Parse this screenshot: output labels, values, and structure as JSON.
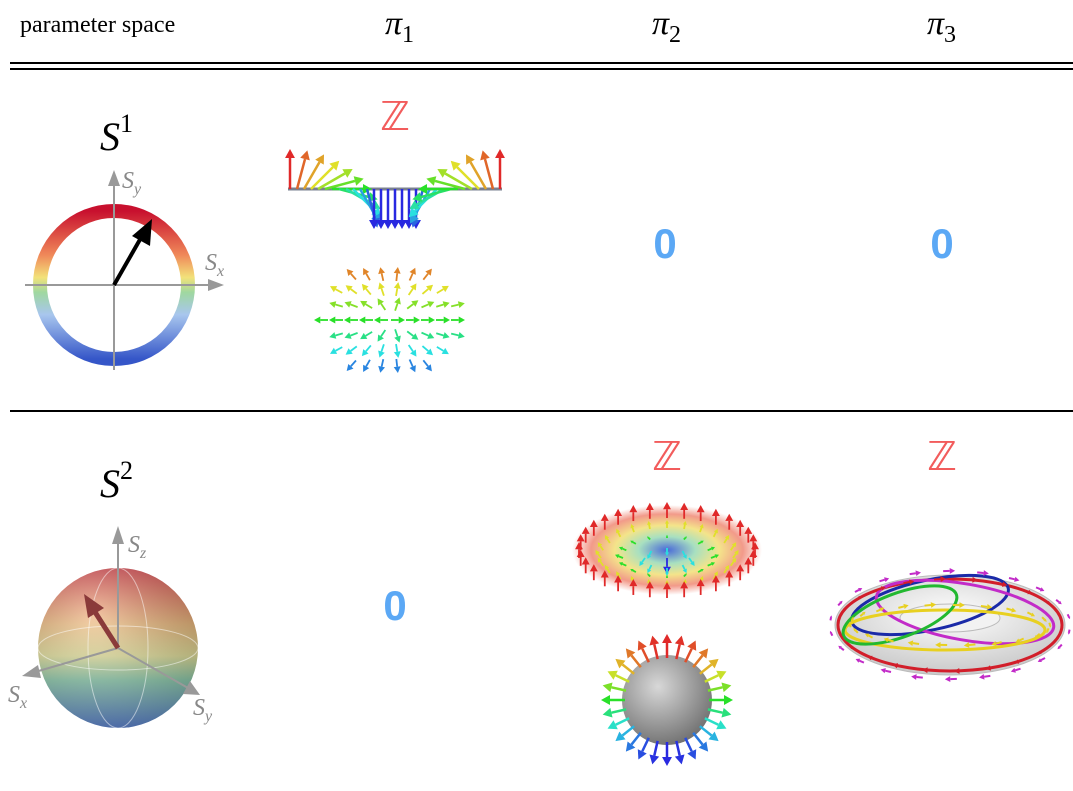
{
  "header": {
    "label": "parameter space",
    "groups": [
      {
        "symbol": "π",
        "index": "1"
      },
      {
        "symbol": "π",
        "index": "2"
      },
      {
        "symbol": "π",
        "index": "3"
      }
    ]
  },
  "rows": [
    {
      "space": {
        "symbol": "S",
        "power": "1"
      },
      "cells": [
        "ℤ",
        "0",
        "0"
      ],
      "axes": [
        {
          "symbol": "S",
          "index": "y"
        },
        {
          "symbol": "S",
          "index": "x"
        }
      ]
    },
    {
      "space": {
        "symbol": "S",
        "power": "2"
      },
      "cells": [
        "0",
        "ℤ",
        "ℤ"
      ],
      "axes": [
        {
          "symbol": "S",
          "index": "z"
        },
        {
          "symbol": "S",
          "index": "x"
        },
        {
          "symbol": "S",
          "index": "y"
        }
      ]
    }
  ]
}
